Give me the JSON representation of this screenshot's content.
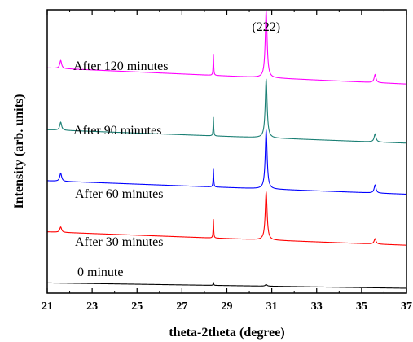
{
  "chart_data": {
    "type": "line",
    "title": "",
    "xlabel": "theta-2theta (degree)",
    "ylabel": "Intensity (arb. units)",
    "xlim": [
      21,
      37
    ],
    "xticks": [
      "21",
      "23",
      "25",
      "27",
      "29",
      "31",
      "33",
      "35",
      "37"
    ],
    "y_ticks_shown": false,
    "grid": false,
    "legend": "none",
    "annotation": {
      "text": "(222)",
      "x": 30.75
    },
    "series": [
      {
        "name": "0 minute",
        "color": "#000000",
        "start_level": 0.02,
        "end_level": 0.0,
        "peaks": [
          {
            "x": 21.6,
            "height": 0.0,
            "width": 0.05
          },
          {
            "x": 28.4,
            "height": 0.012,
            "width": 0.015
          },
          {
            "x": 30.75,
            "height": 0.006,
            "width": 0.05
          },
          {
            "x": 35.6,
            "height": 0.0,
            "width": 0.05
          }
        ]
      },
      {
        "name": "After 30 minutes",
        "color": "#ff0000",
        "start_level": 0.21,
        "end_level": 0.16,
        "peaks": [
          {
            "x": 21.6,
            "height": 0.02,
            "width": 0.05
          },
          {
            "x": 28.4,
            "height": 0.07,
            "width": 0.015
          },
          {
            "x": 30.75,
            "height": 0.18,
            "width": 0.05
          },
          {
            "x": 35.6,
            "height": 0.02,
            "width": 0.05
          }
        ]
      },
      {
        "name": "After 60 minutes",
        "color": "#0000ff",
        "start_level": 0.4,
        "end_level": 0.35,
        "peaks": [
          {
            "x": 21.6,
            "height": 0.03,
            "width": 0.05
          },
          {
            "x": 28.4,
            "height": 0.07,
            "width": 0.015
          },
          {
            "x": 30.75,
            "height": 0.22,
            "width": 0.05
          },
          {
            "x": 35.6,
            "height": 0.03,
            "width": 0.05
          }
        ]
      },
      {
        "name": "After 90 minutes",
        "color": "#1a7f74",
        "start_level": 0.59,
        "end_level": 0.54,
        "peaks": [
          {
            "x": 21.6,
            "height": 0.03,
            "width": 0.05
          },
          {
            "x": 28.4,
            "height": 0.07,
            "width": 0.015
          },
          {
            "x": 30.75,
            "height": 0.22,
            "width": 0.05
          },
          {
            "x": 35.6,
            "height": 0.03,
            "width": 0.05
          }
        ]
      },
      {
        "name": "After 120 minutes",
        "color": "#ff00ff",
        "start_level": 0.82,
        "end_level": 0.76,
        "peaks": [
          {
            "x": 21.6,
            "height": 0.03,
            "width": 0.05
          },
          {
            "x": 28.4,
            "height": 0.08,
            "width": 0.015
          },
          {
            "x": 30.75,
            "height": 0.25,
            "width": 0.05
          },
          {
            "x": 35.6,
            "height": 0.03,
            "width": 0.05
          }
        ]
      }
    ]
  }
}
